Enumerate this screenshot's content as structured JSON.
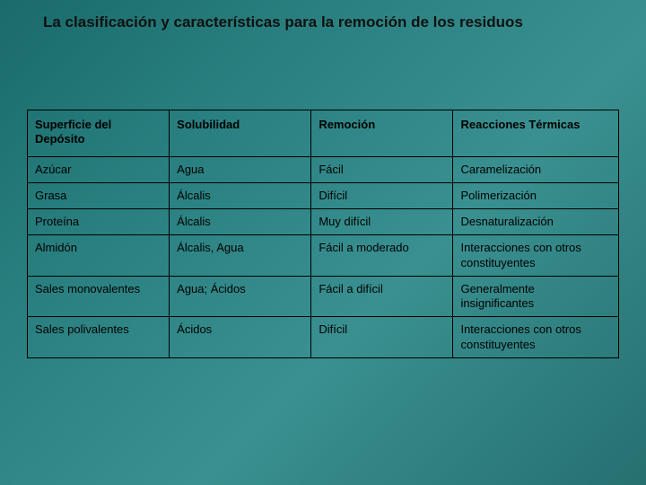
{
  "title": "La clasificación y características para la remoción de los residuos",
  "table": {
    "columns": [
      "Superficie del Depósito",
      "Solubilidad",
      "Remoción",
      "Reacciones Térmicas"
    ],
    "rows": [
      [
        "Azúcar",
        "Agua",
        "Fácil",
        "Caramelización"
      ],
      [
        "Grasa",
        "Álcalis",
        "Difícil",
        "Polimerización"
      ],
      [
        "Proteína",
        "Álcalis",
        "Muy difícil",
        "Desnaturalización"
      ],
      [
        "Almidón",
        "Álcalis, Agua",
        "Fácil a moderado",
        "Interacciones con otros constituyentes"
      ],
      [
        "Sales monovalentes",
        "Agua; Ácidos",
        "Fácil a difícil",
        "Generalmente insignificantes"
      ],
      [
        "Sales polivalentes",
        "Ácidos",
        "Difícil",
        "Interacciones con otros constituyentes"
      ]
    ],
    "col_widths_pct": [
      24,
      24,
      24,
      28
    ],
    "header_fontsize_pt": 13,
    "cell_fontsize_pt": 13,
    "border_color": "#000000",
    "text_color": "#000000",
    "background_gradient": [
      "#1a6b6b",
      "#2a8080",
      "#3a9090",
      "#267070"
    ]
  }
}
